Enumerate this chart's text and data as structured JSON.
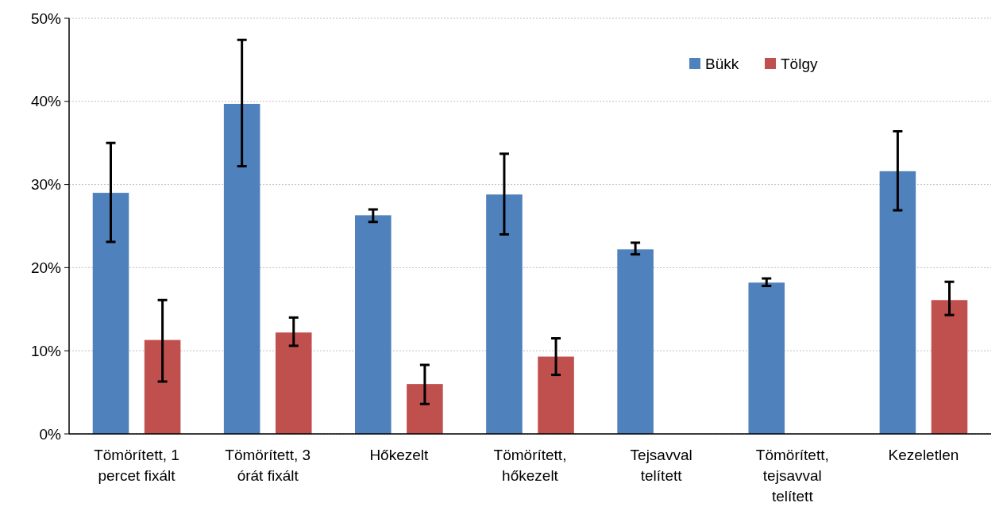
{
  "chart_data": {
    "type": "bar",
    "categories": [
      "Tömörített, 1 percet fixált",
      "Tömörített, 3 órát fixált",
      "Hőkezelt",
      "Tömörített, hőkezelt",
      "Tejsavval telített",
      "Tömörített, tejsavval telített",
      "Kezeletlen"
    ],
    "series": [
      {
        "name": "Bükk",
        "color": "#4f81bd",
        "values": [
          29.0,
          39.7,
          26.3,
          28.8,
          22.2,
          18.2,
          31.6
        ],
        "errors": [
          [
            23.1,
            35.0
          ],
          [
            32.2,
            47.4
          ],
          [
            25.5,
            27.0
          ],
          [
            24.0,
            33.7
          ],
          [
            21.6,
            23.0
          ],
          [
            17.8,
            18.7
          ],
          [
            26.9,
            36.4
          ]
        ]
      },
      {
        "name": "Tölgy",
        "color": "#c0504d",
        "values": [
          11.3,
          12.2,
          6.0,
          9.3,
          null,
          null,
          16.1
        ],
        "errors": [
          [
            6.3,
            16.1
          ],
          [
            10.6,
            14.0
          ],
          [
            3.6,
            8.3
          ],
          [
            7.1,
            11.5
          ],
          null,
          null,
          [
            14.3,
            18.3
          ]
        ]
      }
    ],
    "ylim": [
      0,
      50
    ],
    "yticks": [
      {
        "value": 0,
        "label": "0%"
      },
      {
        "value": 10,
        "label": "10%"
      },
      {
        "value": 20,
        "label": "20%"
      },
      {
        "value": 30,
        "label": "30%"
      },
      {
        "value": 40,
        "label": "40%"
      },
      {
        "value": 50,
        "label": "50%"
      }
    ],
    "grid": "y",
    "legend": "top right"
  }
}
